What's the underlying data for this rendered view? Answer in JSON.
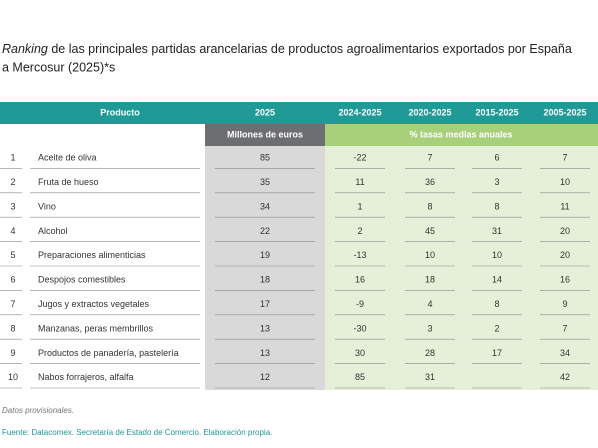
{
  "header": {
    "title_italic": "Ranking",
    "title_rest": " de las principales partidas arancelarias de productos agroalimentarios exportados por España",
    "title_line2": "a Mercosur (2025)*s"
  },
  "table": {
    "columns": [
      "Producto",
      "2025",
      "2024-2025",
      "2020-2025",
      "2015-2025",
      "2005-2025"
    ],
    "subheader": [
      "Millones de euros",
      "% tasas medias anuales"
    ],
    "rows": [
      [
        1,
        "Aceite de oliva",
        85,
        -22,
        7,
        6,
        7
      ],
      [
        2,
        "Fruta de hueso",
        35,
        11,
        36,
        3,
        10
      ],
      [
        3,
        "Vino",
        34,
        1,
        8,
        8,
        11
      ],
      [
        4,
        "Alcohol",
        22,
        2,
        45,
        31,
        20
      ],
      [
        5,
        "Preparaciones alimenticias",
        19,
        -13,
        10,
        10,
        20
      ],
      [
        6,
        "Despojos comestibles",
        18,
        16,
        18,
        14,
        16
      ],
      [
        7,
        "Jugos y extractos vegetales",
        17,
        -9,
        4,
        8,
        9
      ],
      [
        8,
        "Manzanas, peras membrillos",
        13,
        -30,
        3,
        2,
        7
      ],
      [
        9,
        "Productos de panadería, pastelería",
        13,
        30,
        28,
        17,
        34
      ],
      [
        10,
        "Nabos forrajeros, alfalfa",
        12,
        85,
        31,
        null,
        42
      ]
    ]
  },
  "footer": {
    "note": "Datos provisionales.",
    "source": "Fuente: Datacomex. Secretaría de Estado de Comercio. Elaboración propia."
  }
}
